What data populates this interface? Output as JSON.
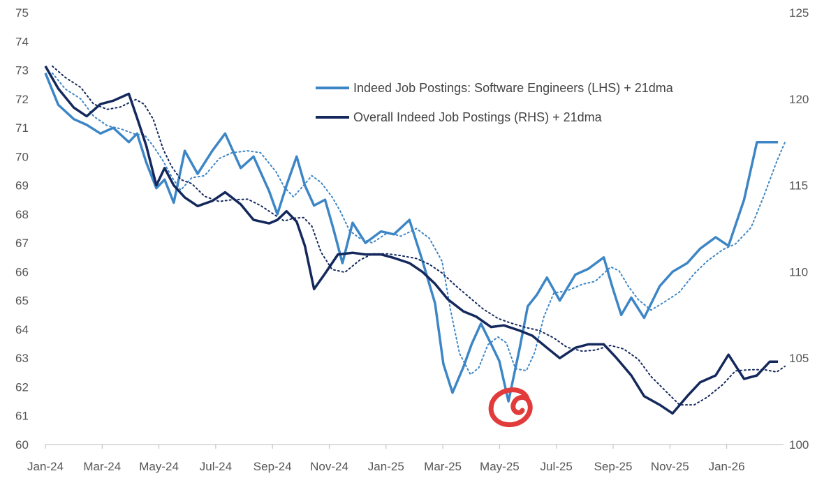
{
  "chart_data": {
    "type": "line",
    "title": "",
    "xlabel": "",
    "ylabel": "",
    "y2label": "",
    "x_ticks": [
      "Jan-24",
      "Mar-24",
      "May-24",
      "Jul-24",
      "Sep-24",
      "Nov-24",
      "Jan-25",
      "Mar-25",
      "May-25",
      "Jul-25",
      "Sep-25",
      "Nov-25",
      "Jan-26"
    ],
    "ylim": [
      60,
      75
    ],
    "y2lim": [
      100,
      125
    ],
    "y_ticks": [
      60,
      61,
      62,
      63,
      64,
      65,
      66,
      67,
      68,
      69,
      70,
      71,
      72,
      73,
      74,
      75
    ],
    "y2_ticks": [
      100,
      105,
      110,
      115,
      120,
      125
    ],
    "grid": false,
    "legend_position": "top-center",
    "series": [
      {
        "name": "Indeed Job Postings: Software Engineers (LHS) + 21dma",
        "axis": "left",
        "color": "#3d86c6",
        "x": [
          "2024-01-01",
          "2024-01-15",
          "2024-02-01",
          "2024-02-15",
          "2024-03-01",
          "2024-03-15",
          "2024-04-01",
          "2024-04-10",
          "2024-04-20",
          "2024-05-01",
          "2024-05-10",
          "2024-05-20",
          "2024-06-01",
          "2024-06-15",
          "2024-07-01",
          "2024-07-15",
          "2024-08-01",
          "2024-08-15",
          "2024-09-01",
          "2024-09-10",
          "2024-09-20",
          "2024-10-01",
          "2024-10-10",
          "2024-10-20",
          "2024-11-01",
          "2024-11-10",
          "2024-11-20",
          "2024-12-01",
          "2024-12-15",
          "2025-01-01",
          "2025-01-15",
          "2025-02-01",
          "2025-02-15",
          "2025-03-01",
          "2025-03-10",
          "2025-03-20",
          "2025-04-01",
          "2025-04-10",
          "2025-04-20",
          "2025-05-01",
          "2025-05-10",
          "2025-05-20",
          "2025-06-01",
          "2025-06-10",
          "2025-06-20",
          "2025-07-01",
          "2025-07-15",
          "2025-08-01",
          "2025-08-15",
          "2025-09-01",
          "2025-09-10",
          "2025-09-20",
          "2025-10-01",
          "2025-10-15",
          "2025-11-01",
          "2025-11-15",
          "2025-12-01",
          "2025-12-15",
          "2026-01-01",
          "2026-01-15",
          "2026-02-01",
          "2026-02-15",
          "2026-03-01",
          "2026-03-10"
        ],
        "values": [
          72.9,
          71.8,
          71.3,
          71.1,
          70.8,
          71.0,
          70.5,
          70.8,
          69.8,
          68.9,
          69.2,
          68.4,
          70.2,
          69.4,
          70.2,
          70.8,
          69.6,
          70.0,
          68.8,
          68.0,
          69.0,
          70.0,
          69.0,
          68.3,
          68.5,
          67.5,
          66.3,
          67.7,
          67.0,
          67.4,
          67.3,
          67.8,
          66.4,
          64.9,
          62.8,
          61.8,
          62.7,
          63.5,
          64.2,
          63.5,
          62.9,
          61.5,
          63.3,
          64.8,
          65.2,
          65.8,
          65.0,
          65.9,
          66.1,
          66.5,
          65.5,
          64.5,
          65.1,
          64.4,
          65.5,
          66.0,
          66.3,
          66.8,
          67.2,
          66.9,
          68.5,
          70.5,
          70.5,
          70.5
        ]
      },
      {
        "name": "Overall Indeed Job Postings (RHS) + 21dma",
        "axis": "right",
        "color": "#14285c",
        "x": [
          "2024-01-01",
          "2024-01-15",
          "2024-02-01",
          "2024-02-15",
          "2024-03-01",
          "2024-03-15",
          "2024-04-01",
          "2024-04-10",
          "2024-04-20",
          "2024-05-01",
          "2024-05-10",
          "2024-05-20",
          "2024-06-01",
          "2024-06-15",
          "2024-07-01",
          "2024-07-15",
          "2024-08-01",
          "2024-08-15",
          "2024-09-01",
          "2024-09-10",
          "2024-09-20",
          "2024-10-01",
          "2024-10-10",
          "2024-10-20",
          "2024-11-01",
          "2024-11-15",
          "2024-12-01",
          "2024-12-15",
          "2025-01-01",
          "2025-01-15",
          "2025-02-01",
          "2025-02-15",
          "2025-03-01",
          "2025-03-15",
          "2025-04-01",
          "2025-04-15",
          "2025-05-01",
          "2025-05-15",
          "2025-06-01",
          "2025-06-15",
          "2025-07-01",
          "2025-07-15",
          "2025-08-01",
          "2025-08-15",
          "2025-09-01",
          "2025-09-15",
          "2025-10-01",
          "2025-10-15",
          "2025-11-01",
          "2025-11-15",
          "2025-12-01",
          "2025-12-15",
          "2026-01-01",
          "2026-01-15",
          "2026-02-01",
          "2026-02-15",
          "2026-03-01",
          "2026-03-10"
        ],
        "values": [
          121.9,
          120.6,
          119.5,
          119.0,
          119.7,
          119.9,
          120.3,
          118.9,
          117.3,
          115.0,
          116.0,
          115.0,
          114.3,
          113.8,
          114.1,
          114.6,
          113.9,
          113.0,
          112.8,
          113.0,
          113.5,
          112.9,
          111.5,
          109.0,
          109.9,
          111.0,
          111.1,
          111.0,
          111.0,
          110.8,
          110.5,
          110.0,
          109.3,
          108.4,
          107.7,
          107.4,
          106.8,
          106.9,
          106.6,
          106.3,
          105.6,
          105.0,
          105.6,
          105.8,
          105.8,
          105.0,
          104.0,
          102.8,
          102.3,
          101.8,
          102.8,
          103.6,
          104.0,
          105.2,
          103.8,
          104.0,
          104.8,
          104.8
        ]
      }
    ],
    "annotation": "red-circle-marker"
  }
}
